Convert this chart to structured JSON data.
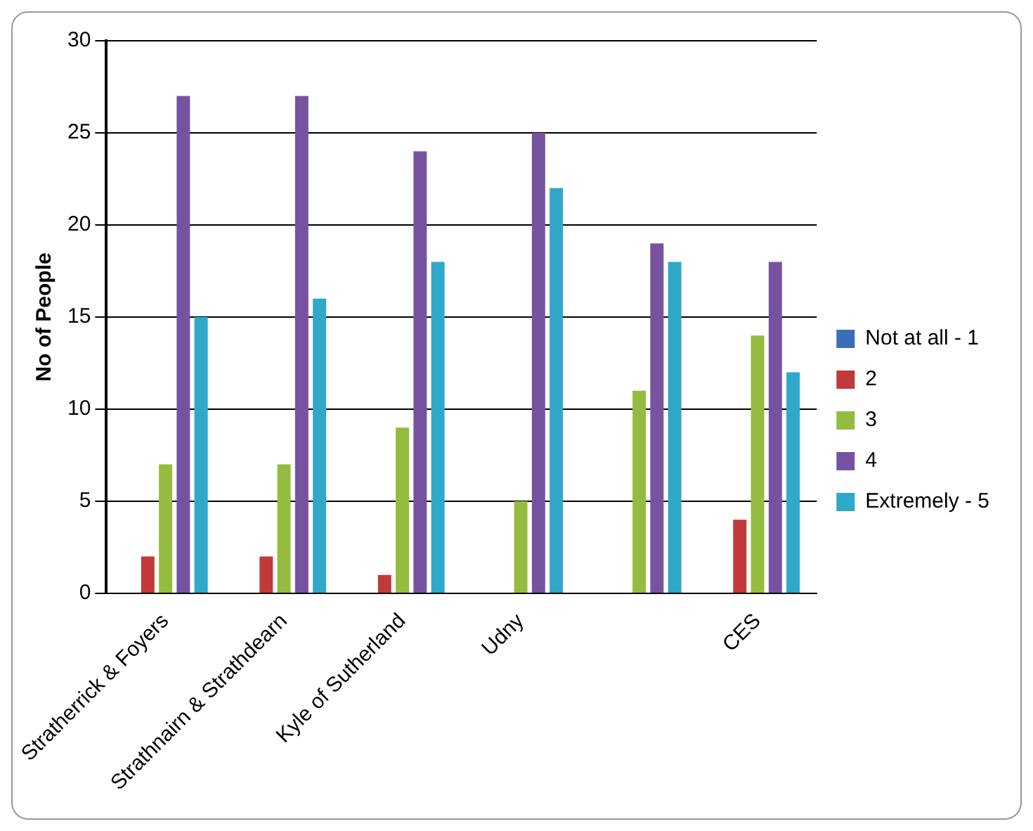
{
  "chart_data": {
    "type": "bar",
    "ylabel": "No of People",
    "categories": [
      "Stratherrick & Foyers",
      "Strathnairn & Strathdearn",
      "Kyle of Sutherland",
      "Udny",
      null,
      "CES"
    ],
    "series": [
      {
        "name": "Not at all - 1",
        "color": "#3a6fb8",
        "values": [
          0,
          0,
          0,
          0,
          0,
          0
        ]
      },
      {
        "name": "2",
        "color": "#c0393b",
        "values": [
          2,
          2,
          1,
          0,
          0,
          4
        ]
      },
      {
        "name": "3",
        "color": "#95bc3f",
        "values": [
          7,
          7,
          9,
          5,
          11,
          14
        ]
      },
      {
        "name": "4",
        "color": "#7653a0",
        "values": [
          27,
          27,
          24,
          25,
          19,
          18
        ]
      },
      {
        "name": "Extremely - 5",
        "color": "#2fa8c9",
        "values": [
          15,
          16,
          18,
          22,
          18,
          12
        ]
      }
    ],
    "ylim": [
      0,
      30
    ],
    "yticks": [
      0,
      5,
      10,
      15,
      20,
      25,
      30
    ],
    "grid": "y",
    "legend": "right"
  }
}
